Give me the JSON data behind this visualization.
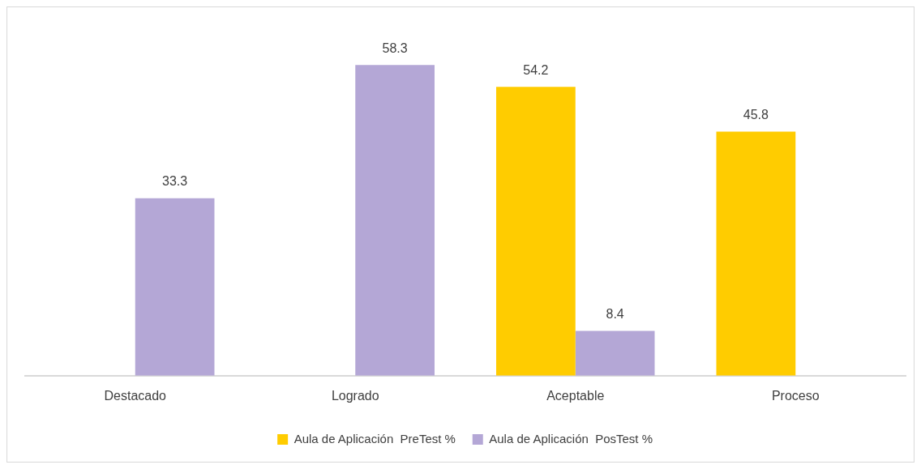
{
  "chart_data": {
    "type": "bar",
    "categories": [
      "Destacado",
      "Logrado",
      "Aceptable",
      "Proceso"
    ],
    "series": [
      {
        "name": "Aula de Aplicación  PreTest %",
        "color": "#ffcc00",
        "values": [
          null,
          null,
          54.2,
          45.8
        ]
      },
      {
        "name": "Aula de Aplicación  PosTest %",
        "color": "#b4a7d6",
        "values": [
          33.3,
          58.3,
          8.4,
          null
        ]
      }
    ],
    "data_labels": true,
    "legend": "bottom",
    "grid": false
  }
}
